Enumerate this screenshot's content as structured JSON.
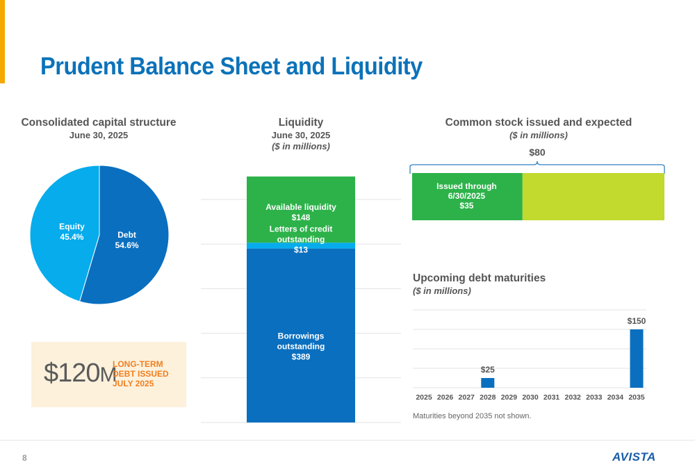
{
  "title": "Prudent Balance Sheet and Liquidity",
  "capital": {
    "title": "Consolidated capital structure",
    "subtitle": "June 30, 2025"
  },
  "liquidity": {
    "title": "Liquidity",
    "subtitle": "June 30, 2025",
    "units": "($ in millions)"
  },
  "stock": {
    "title": "Common stock issued and expected",
    "units": "($ in millions)",
    "total_label": "$80"
  },
  "debt": {
    "title": "Upcoming debt maturities",
    "units": "($ in millions)",
    "note": "Maturities beyond 2035 not shown."
  },
  "callout": {
    "dollar": "$",
    "amount": "120",
    "suffix": "M",
    "line1": "LONG-TERM",
    "line2": "DEBT ISSUED",
    "line3": "JULY 2025"
  },
  "page_number": "8",
  "logo_text": "AVISTA",
  "colors": {
    "title_blue": "#0b72b9",
    "dark_blue": "#0a6fbf",
    "light_blue": "#06acec",
    "green": "#2db24a",
    "lime": "#c2d92e",
    "orange": "#f07f20",
    "accent": "#f5a800"
  },
  "chart_data": [
    {
      "type": "pie",
      "slices": [
        {
          "name": "Debt",
          "value": 54.6,
          "label": "54.6%",
          "color": "#0a6fbf"
        },
        {
          "name": "Equity",
          "value": 45.4,
          "label": "45.4%",
          "color": "#06acec"
        }
      ]
    },
    {
      "type": "bar",
      "stacked": true,
      "total": 550,
      "segments": [
        {
          "lines": [
            "Borrowings",
            "outstanding",
            "$389"
          ],
          "value": 389,
          "color": "#0a6fbf"
        },
        {
          "lines": [
            "Letters of credit",
            "outstanding",
            "$13"
          ],
          "value": 13,
          "color": "#06acec"
        },
        {
          "lines": [
            "Available liquidity",
            "$148"
          ],
          "value": 148,
          "color": "#2db24a"
        }
      ]
    },
    {
      "type": "bar",
      "orientation": "horizontal",
      "total": 80,
      "segments": [
        {
          "lines": [
            "Issued through",
            "6/30/2025",
            "$35"
          ],
          "value": 35,
          "color": "#2db24a"
        },
        {
          "lines": [],
          "value": 45,
          "color": "#c2d92e"
        }
      ]
    },
    {
      "type": "bar",
      "categories": [
        "2025",
        "2026",
        "2027",
        "2028",
        "2029",
        "2030",
        "2031",
        "2032",
        "2033",
        "2034",
        "2035"
      ],
      "values": [
        0,
        0,
        0,
        25,
        0,
        0,
        0,
        0,
        0,
        0,
        150
      ],
      "labels": [
        "",
        "",
        "",
        "$25",
        "",
        "",
        "",
        "",
        "",
        "",
        "$150"
      ],
      "ylim": [
        0,
        200
      ],
      "color": "#0a6fbf",
      "grid": true
    }
  ]
}
